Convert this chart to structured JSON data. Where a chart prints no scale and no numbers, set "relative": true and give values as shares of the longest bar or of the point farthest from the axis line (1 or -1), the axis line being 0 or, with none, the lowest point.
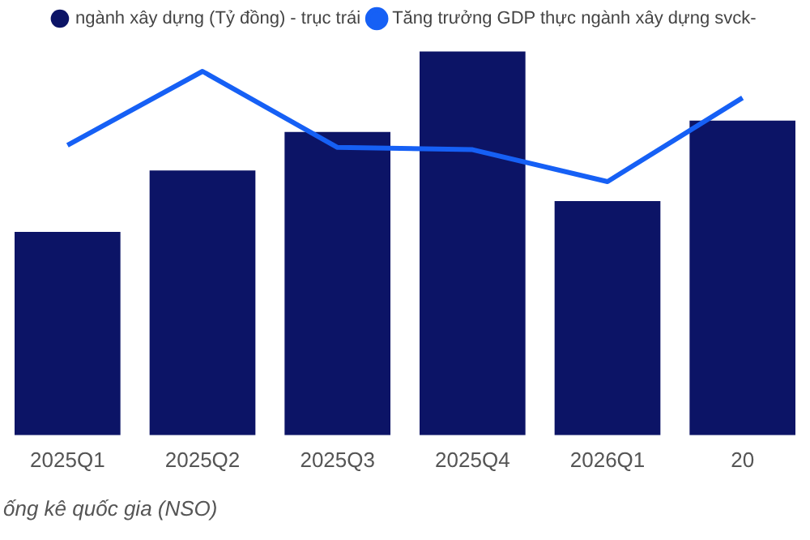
{
  "chart_data": {
    "type": "bar",
    "relative": true,
    "categories": [
      "2025Q1",
      "2025Q2",
      "2025Q3",
      "2025Q4",
      "2026Q1",
      "20"
    ],
    "series": [
      {
        "name": "ngành xây dựng (Tỷ đồng) - trục trái",
        "color": "#0c1466",
        "values": [
          0.53,
          0.69,
          0.79,
          1,
          0.61,
          0.82
        ]
      },
      {
        "name": "Tăng trưởng GDP thực ngành xây dựng svck-",
        "type": "line",
        "axis": "y2",
        "color": "#1660f5",
        "values": [
          0.33,
          1,
          0.31,
          0.29,
          0,
          0.76
        ]
      }
    ],
    "legend": "top",
    "marker": "none",
    "line_style": "solid",
    "grid": false,
    "annotations": [
      "ống kê quốc gia (NSO)"
    ]
  }
}
